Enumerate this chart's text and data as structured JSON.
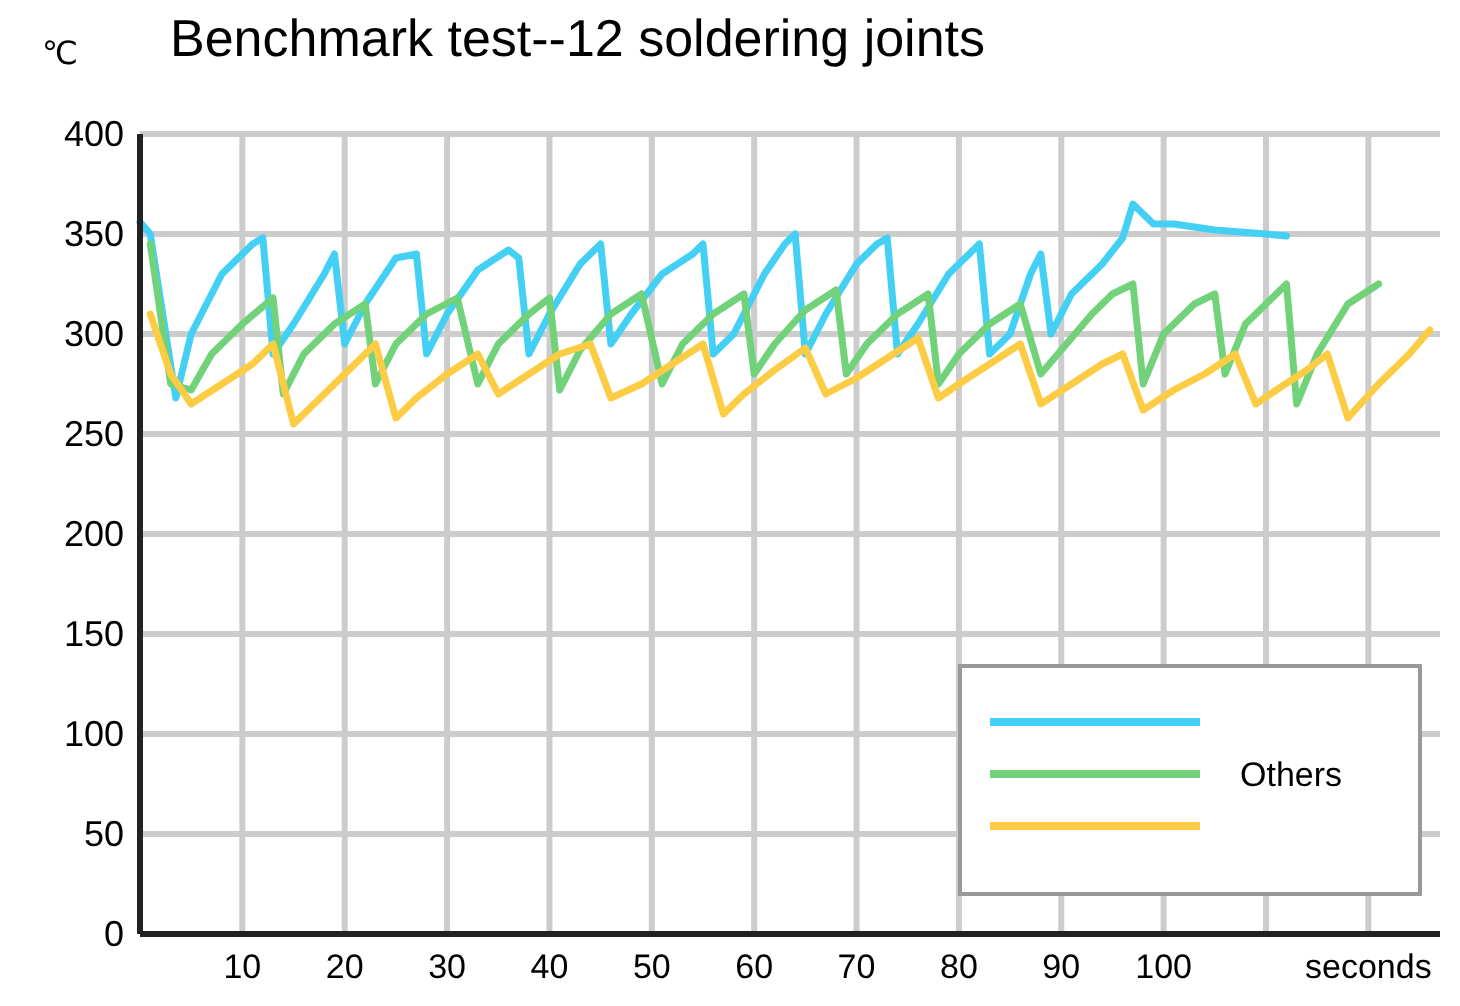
{
  "chart_data": {
    "type": "line",
    "title": "Benchmark test--12 soldering joints",
    "ylabel": "℃",
    "xlim": [
      0,
      127
    ],
    "xticks": [
      10,
      20,
      30,
      40,
      50,
      60,
      70,
      80,
      90,
      100,
      {
        "value": 110,
        "label": null
      },
      {
        "value": 120,
        "label": "seconds"
      }
    ],
    "ylim": [
      0,
      400
    ],
    "yticks": [
      0,
      50,
      100,
      150,
      200,
      250,
      300,
      350,
      400
    ],
    "grid": true,
    "legend": "bottom right",
    "line_style": "solid",
    "marker": "none",
    "series": [
      {
        "color": "#44d0f4",
        "x": [
          0,
          1,
          3.5,
          5,
          8,
          11,
          12,
          13,
          15,
          18,
          19,
          20,
          22,
          25,
          27,
          28,
          30,
          33,
          36,
          37,
          38,
          40,
          43,
          45,
          46,
          48,
          51,
          54,
          55,
          56,
          58,
          61,
          63,
          64,
          65,
          67,
          70,
          72,
          73,
          74,
          76,
          79,
          81,
          82,
          83,
          85,
          87,
          88,
          89,
          91,
          94,
          96,
          97,
          99,
          101,
          105,
          110,
          112
        ],
        "values": [
          356,
          350,
          268,
          300,
          330,
          345,
          348,
          290,
          305,
          330,
          340,
          295,
          315,
          338,
          340,
          290,
          310,
          332,
          342,
          338,
          290,
          310,
          335,
          345,
          295,
          310,
          330,
          340,
          345,
          290,
          300,
          330,
          345,
          350,
          290,
          310,
          335,
          345,
          348,
          290,
          305,
          330,
          340,
          345,
          290,
          300,
          330,
          340,
          300,
          320,
          335,
          348,
          365,
          355,
          355,
          352,
          350,
          349
        ]
      },
      {
        "name": "Others",
        "color": "#72d27a",
        "x": [
          1,
          3,
          5,
          7,
          10,
          13,
          14,
          16,
          19,
          22,
          23,
          25,
          28,
          31,
          33,
          35,
          38,
          40,
          41,
          43,
          46,
          49,
          51,
          53,
          56,
          59,
          60,
          62,
          65,
          68,
          69,
          71,
          74,
          77,
          78,
          80,
          83,
          86,
          88,
          90,
          93,
          95,
          97,
          98,
          100,
          103,
          105,
          106,
          108,
          111,
          112,
          113,
          115,
          118,
          121
        ],
        "values": [
          345,
          275,
          272,
          290,
          305,
          318,
          270,
          290,
          305,
          315,
          275,
          295,
          310,
          318,
          275,
          295,
          310,
          318,
          272,
          292,
          310,
          320,
          275,
          295,
          310,
          320,
          280,
          295,
          312,
          322,
          280,
          295,
          310,
          320,
          275,
          290,
          305,
          315,
          280,
          292,
          310,
          320,
          325,
          275,
          300,
          315,
          320,
          280,
          305,
          320,
          325,
          265,
          290,
          315,
          325
        ]
      },
      {
        "color": "#fbcc44",
        "x": [
          1,
          3,
          5,
          8,
          11,
          13,
          15,
          17,
          20,
          23,
          25,
          27,
          30,
          33,
          35,
          38,
          41,
          44,
          46,
          49,
          52,
          55,
          57,
          59,
          62,
          65,
          67,
          70,
          73,
          76,
          78,
          80,
          83,
          86,
          88,
          91,
          94,
          96,
          98,
          101,
          104,
          107,
          109,
          111,
          114,
          116,
          118,
          121,
          124,
          126
        ],
        "values": [
          310,
          280,
          265,
          275,
          285,
          295,
          255,
          265,
          280,
          295,
          258,
          268,
          280,
          290,
          270,
          280,
          290,
          295,
          268,
          275,
          285,
          295,
          260,
          270,
          282,
          293,
          270,
          278,
          288,
          298,
          268,
          275,
          285,
          295,
          265,
          275,
          285,
          290,
          262,
          272,
          280,
          290,
          265,
          272,
          282,
          290,
          258,
          275,
          290,
          302
        ]
      }
    ]
  }
}
